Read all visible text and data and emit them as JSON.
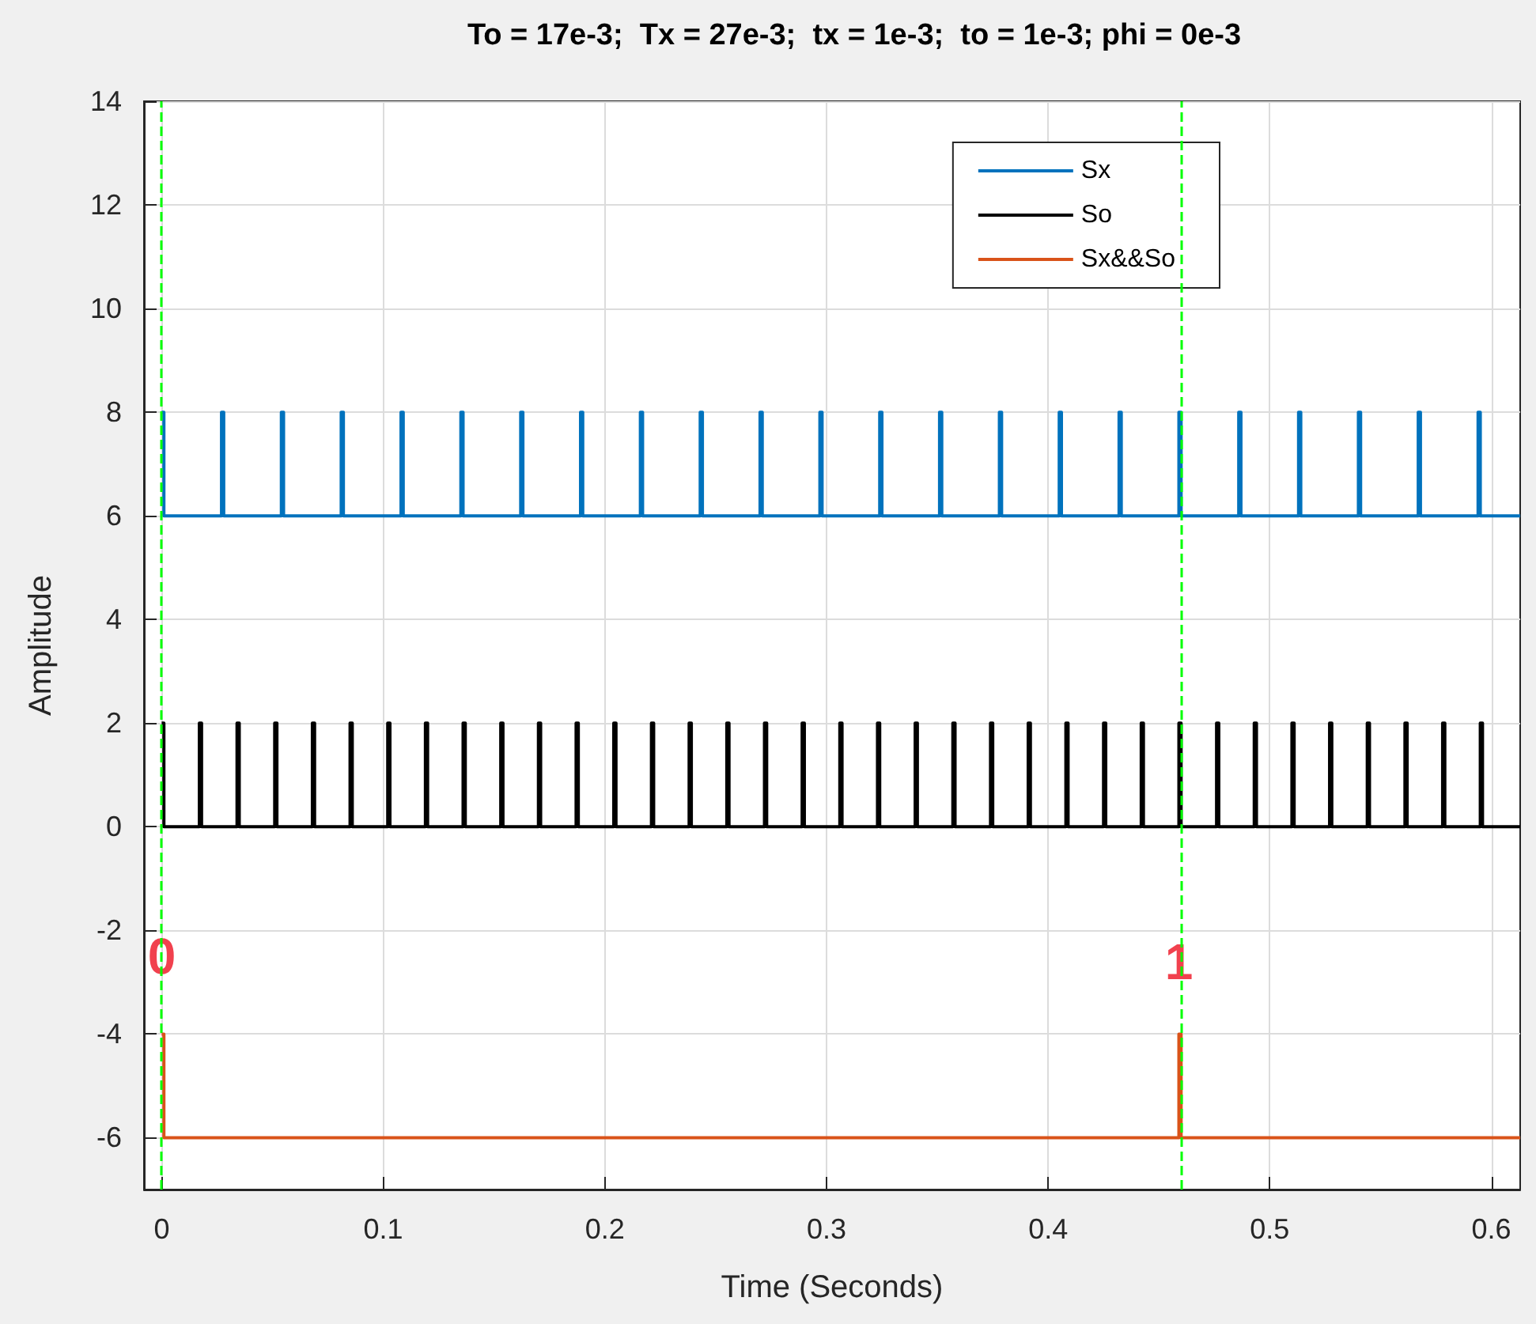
{
  "chart_data": {
    "type": "step",
    "title": "To = 17e-3;  Tx = 27e-3;  tx = 1e-3;  to = 1e-3; phi = 0e-3",
    "xlabel": "Time (Seconds)",
    "ylabel": "Amplitude",
    "xlim": [
      -0.008,
      0.613
    ],
    "xticks": [
      0,
      0.1,
      0.2,
      0.3,
      0.4,
      0.5,
      0.6
    ],
    "ylim": [
      -7,
      14
    ],
    "yticks": [
      -6,
      -4,
      -2,
      0,
      2,
      4,
      6,
      8,
      10,
      12,
      14
    ],
    "grid": true,
    "legend": "top right",
    "marker": "none",
    "line_style": "solid",
    "series": [
      {
        "name": "Sx",
        "color": "#0072bd",
        "x": [
          0,
          0.001,
          0.027,
          0.028,
          0.054,
          0.055,
          0.081,
          0.082,
          0.108,
          0.109,
          0.135,
          0.136,
          0.162,
          0.163,
          0.189,
          0.19,
          0.216,
          0.217,
          0.243,
          0.244,
          0.27,
          0.271,
          0.297,
          0.298,
          0.324,
          0.325,
          0.351,
          0.352,
          0.378,
          0.379,
          0.405,
          0.406,
          0.432,
          0.433,
          0.459,
          0.46,
          0.486,
          0.487,
          0.513,
          0.514,
          0.54,
          0.541,
          0.567,
          0.568,
          0.594,
          0.595,
          0.613
        ],
        "values": [
          8,
          6,
          8,
          6,
          8,
          6,
          8,
          6,
          8,
          6,
          8,
          6,
          8,
          6,
          8,
          6,
          8,
          6,
          8,
          6,
          8,
          6,
          8,
          6,
          8,
          6,
          8,
          6,
          8,
          6,
          8,
          6,
          8,
          6,
          8,
          6,
          8,
          6,
          8,
          6,
          8,
          6,
          8,
          6,
          8,
          6,
          6
        ]
      },
      {
        "name": "So",
        "color": "#000000",
        "x": [
          0,
          0.001,
          0.017,
          0.018,
          0.034,
          0.035,
          0.051,
          0.052,
          0.068,
          0.069,
          0.085,
          0.086,
          0.102,
          0.103,
          0.119,
          0.12,
          0.136,
          0.137,
          0.153,
          0.154,
          0.17,
          0.171,
          0.187,
          0.188,
          0.204,
          0.205,
          0.221,
          0.222,
          0.238,
          0.239,
          0.255,
          0.256,
          0.272,
          0.273,
          0.289,
          0.29,
          0.306,
          0.307,
          0.323,
          0.324,
          0.34,
          0.341,
          0.357,
          0.358,
          0.374,
          0.375,
          0.391,
          0.392,
          0.408,
          0.409,
          0.425,
          0.426,
          0.442,
          0.443,
          0.459,
          0.46,
          0.476,
          0.477,
          0.493,
          0.494,
          0.51,
          0.511,
          0.527,
          0.528,
          0.544,
          0.545,
          0.561,
          0.562,
          0.578,
          0.579,
          0.595,
          0.596,
          0.613
        ],
        "values": [
          2,
          0,
          2,
          0,
          2,
          0,
          2,
          0,
          2,
          0,
          2,
          0,
          2,
          0,
          2,
          0,
          2,
          0,
          2,
          0,
          2,
          0,
          2,
          0,
          2,
          0,
          2,
          0,
          2,
          0,
          2,
          0,
          2,
          0,
          2,
          0,
          2,
          0,
          2,
          0,
          2,
          0,
          2,
          0,
          2,
          0,
          2,
          0,
          2,
          0,
          2,
          0,
          2,
          0,
          2,
          0,
          2,
          0,
          2,
          0,
          2,
          0,
          2,
          0,
          2,
          0,
          2,
          0,
          2,
          0,
          2,
          0,
          0
        ]
      },
      {
        "name": "Sx&&So",
        "color": "#d95319",
        "x": [
          0,
          0.001,
          0.459,
          0.46,
          0.613
        ],
        "values": [
          -4,
          -6,
          -4,
          -6,
          -6
        ]
      }
    ],
    "ref_lines": [
      {
        "axis": "x",
        "value": 0,
        "color": "#00ff00",
        "line_style": "dashed"
      },
      {
        "axis": "x",
        "value": 0.459,
        "color": "#00ff00",
        "line_style": "dashed"
      }
    ],
    "annotations": [
      {
        "text": "0",
        "x": 0,
        "y": -2.5
      },
      {
        "text": "1",
        "x": 0.459,
        "y": -2.6
      }
    ]
  }
}
